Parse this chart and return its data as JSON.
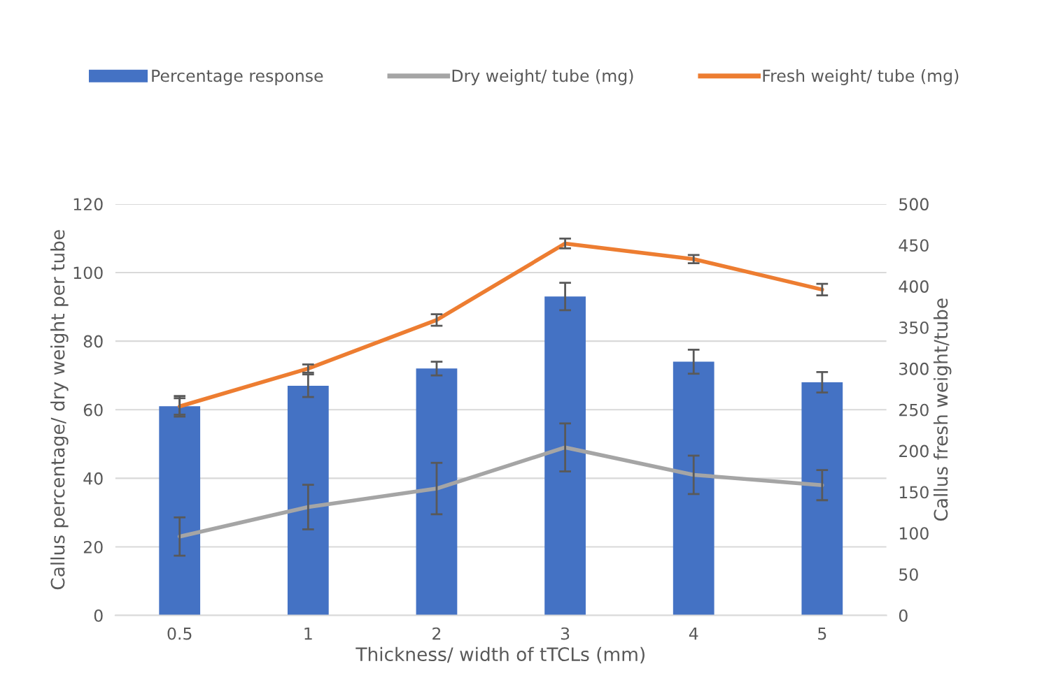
{
  "chart_data": {
    "type": "bar",
    "xlabel": "Thickness/ width of tTCLs (mm)",
    "ylabel": "Callus percentage/ dry weight per tube",
    "y2label": "Callus fresh weight/tube",
    "categories": [
      "0.5",
      "1",
      "2",
      "3",
      "4",
      "5"
    ],
    "series": [
      {
        "name": "Percentage response",
        "color": "#4472c4",
        "values": [
          61,
          67,
          72,
          93,
          74,
          68
        ],
        "errors": [
          3,
          3.3,
          2,
          4,
          3.5,
          3
        ]
      },
      {
        "name": "Dry weight/ tube (mg)",
        "type": "line",
        "color": "#a5a5a5",
        "values": [
          23,
          31.6,
          37,
          49,
          41,
          38
        ],
        "errors": [
          5.6,
          6.5,
          7.5,
          7,
          5.6,
          4.4
        ]
      },
      {
        "name": "Fresh weight/ tube (mg)",
        "type": "line",
        "axis": "y2",
        "color": "#ed7d31",
        "values": [
          254,
          300,
          359,
          452,
          433,
          396
        ],
        "errors": [
          10,
          5,
          7,
          6,
          5,
          7
        ]
      }
    ],
    "ylim": [
      0,
      120
    ],
    "yticks": [
      0,
      20,
      40,
      60,
      80,
      100,
      120
    ],
    "y2lim": [
      0,
      500
    ],
    "y2ticks": [
      0,
      50,
      100,
      150,
      200,
      250,
      300,
      350,
      400,
      450,
      500
    ],
    "grid": "y",
    "legend": "top",
    "marker": "none"
  }
}
